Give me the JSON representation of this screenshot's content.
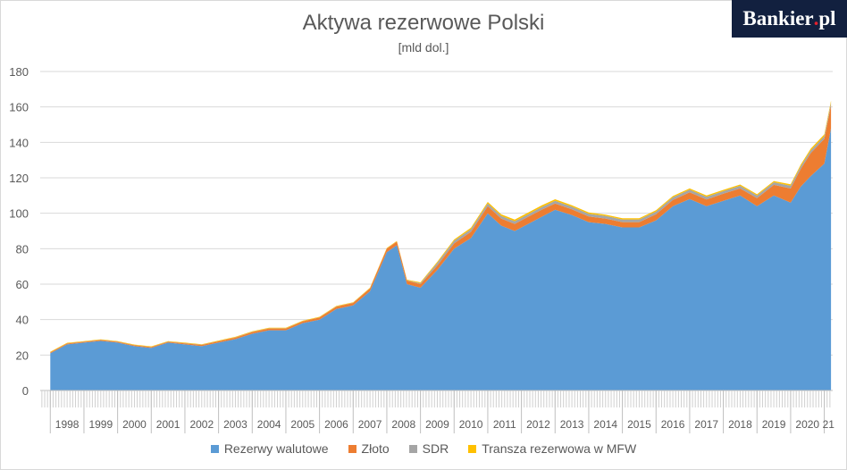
{
  "brand": {
    "logo_text": "Bankier",
    "logo_dot": ".",
    "logo_tld": "pl"
  },
  "chart_data": {
    "type": "area",
    "stacked": true,
    "title": "Aktywa rezerwowe Polski",
    "subtitle": "[mld dol.]",
    "ylim": [
      0,
      180
    ],
    "yticks": [
      0,
      20,
      40,
      60,
      80,
      100,
      120,
      140,
      160,
      180
    ],
    "grid": true,
    "legend_position": "bottom",
    "x_tick_labels": [
      "1998",
      "1999",
      "2000",
      "2001",
      "2002",
      "2003",
      "2004",
      "2005",
      "2006",
      "2007",
      "2008",
      "2009",
      "2010",
      "2011",
      "2012",
      "2013",
      "2014",
      "2015",
      "2016",
      "2017",
      "2018",
      "2019",
      "2020",
      "21"
    ],
    "x": [
      1998.0,
      1998.5,
      1999.0,
      1999.5,
      2000.0,
      2000.5,
      2001.0,
      2001.5,
      2002.0,
      2002.5,
      2003.0,
      2003.5,
      2004.0,
      2004.5,
      2005.0,
      2005.5,
      2006.0,
      2006.5,
      2007.0,
      2007.5,
      2008.0,
      2008.3,
      2008.6,
      2009.0,
      2009.5,
      2010.0,
      2010.5,
      2011.0,
      2011.4,
      2011.8,
      2012.2,
      2012.6,
      2013.0,
      2013.5,
      2014.0,
      2014.5,
      2015.0,
      2015.5,
      2016.0,
      2016.5,
      2017.0,
      2017.5,
      2018.0,
      2018.5,
      2019.0,
      2019.5,
      2020.0,
      2020.3,
      2020.6,
      2021.0,
      2021.2
    ],
    "series": [
      {
        "name": "Rezerwy walutowe",
        "color": "#5b9bd5",
        "values": [
          21,
          26,
          27,
          28,
          27,
          25,
          24,
          27,
          26,
          25,
          27,
          29,
          32,
          34,
          34,
          38,
          40,
          46,
          48,
          56,
          78,
          82,
          60,
          58,
          68,
          80,
          86,
          100,
          93,
          90,
          94,
          98,
          102,
          99,
          95,
          94,
          92,
          92,
          96,
          104,
          108,
          104,
          107,
          110,
          104,
          110,
          106,
          115,
          121,
          128,
          148
        ]
      },
      {
        "name": "Złoto",
        "color": "#ed7d31",
        "values": [
          0.5,
          0.5,
          0.5,
          0.5,
          0.5,
          0.5,
          0.5,
          0.5,
          0.6,
          0.7,
          0.8,
          0.9,
          1,
          1,
          1,
          1,
          1.2,
          1.3,
          1.4,
          1.6,
          2,
          2,
          2,
          2,
          2.5,
          3,
          3.5,
          4,
          4,
          4,
          4,
          4,
          3.5,
          3.2,
          3.2,
          3,
          3,
          3,
          3.5,
          3.5,
          3.8,
          3.8,
          4,
          4,
          4.5,
          6,
          8,
          10,
          13,
          14,
          13
        ]
      },
      {
        "name": "SDR",
        "color": "#a5a5a5",
        "values": [
          0.1,
          0.1,
          0.1,
          0.1,
          0.1,
          0.1,
          0.1,
          0.1,
          0.1,
          0.1,
          0.1,
          0.1,
          0.1,
          0.1,
          0.1,
          0.1,
          0.1,
          0.1,
          0.1,
          0.1,
          0.1,
          0.1,
          0.1,
          0.5,
          1.5,
          1.5,
          1.5,
          1.5,
          1.5,
          1.5,
          1.5,
          1.5,
          1.5,
          1.5,
          1.5,
          1.5,
          1.5,
          1.5,
          1.5,
          1.5,
          1.5,
          1.5,
          1.5,
          1.5,
          1.5,
          1.5,
          1.5,
          1.5,
          1.5,
          1.5,
          1.5
        ]
      },
      {
        "name": "Transza rezerwowa w MFW",
        "color": "#ffc000",
        "values": [
          0.3,
          0.3,
          0.3,
          0.3,
          0.3,
          0.3,
          0.3,
          0.3,
          0.3,
          0.3,
          0.3,
          0.3,
          0.3,
          0.3,
          0.3,
          0.3,
          0.3,
          0.3,
          0.3,
          0.3,
          0.3,
          0.3,
          0.4,
          0.5,
          0.6,
          0.7,
          0.8,
          0.9,
          0.9,
          0.9,
          0.9,
          0.9,
          0.9,
          0.8,
          0.8,
          0.7,
          0.7,
          0.7,
          0.7,
          0.7,
          0.7,
          0.7,
          0.7,
          0.7,
          0.7,
          0.7,
          0.8,
          0.9,
          1,
          1,
          1
        ]
      }
    ]
  }
}
